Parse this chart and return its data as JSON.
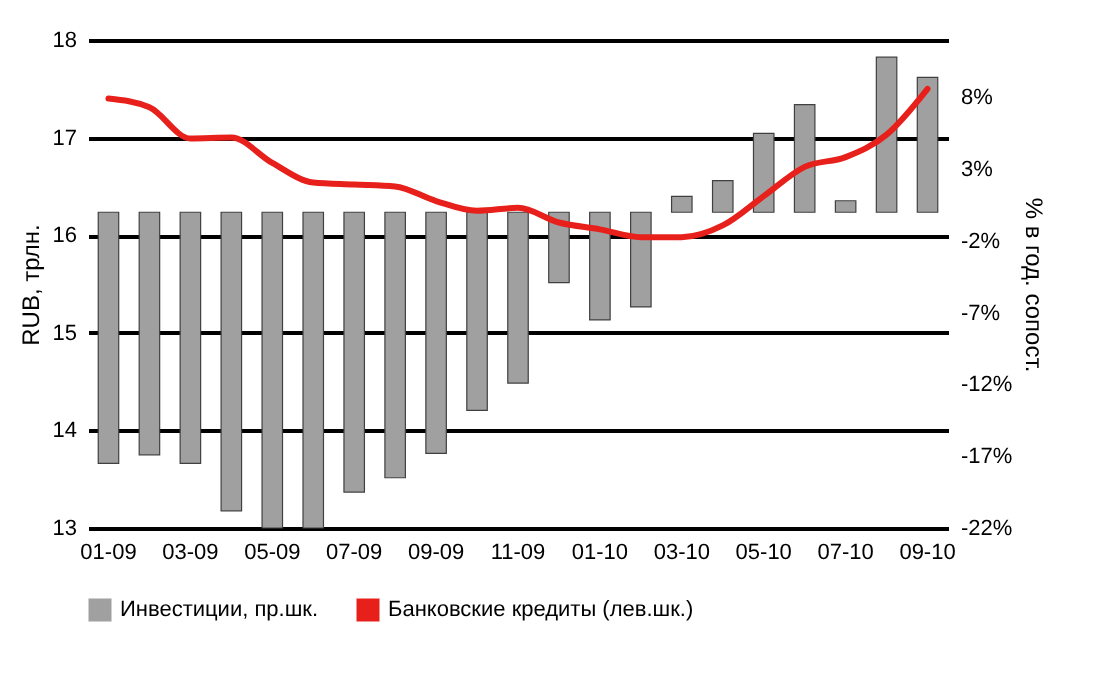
{
  "chart_data": {
    "type": "bar",
    "categories": [
      "01-09",
      null,
      "03-09",
      null,
      "05-09",
      null,
      "07-09",
      null,
      "09-09",
      null,
      "11-09",
      null,
      "01-10",
      null,
      "03-10",
      null,
      "05-10",
      null,
      "07-10",
      null,
      "09-10"
    ],
    "series": [
      {
        "name": "Инвестиции, пр.шк.",
        "axis": "y2",
        "color": "#a0a0a0",
        "values": [
          -17.5,
          -16.9,
          -17.5,
          -20.8,
          -22,
          -22,
          -19.5,
          -18.5,
          -16.8,
          -13.8,
          -11.9,
          -4.9,
          -7.5,
          -6.6,
          1.1,
          2.2,
          5.5,
          7.5,
          0.8,
          10.8,
          9.4
        ]
      },
      {
        "name": "Банковские кредиты (лев.шк.)",
        "type": "line",
        "color": "#e8201c",
        "values": [
          17.4,
          17.31,
          16.99,
          17.0,
          16.74,
          16.54,
          16.52,
          16.5,
          16.35,
          16.25,
          16.28,
          16.13,
          16.06,
          15.98,
          15.98,
          16.1,
          16.4,
          16.7,
          16.8,
          17.03,
          17.5
        ]
      }
    ],
    "ylabel": "RUB, трлн.",
    "y2label": "% в год. сопост.",
    "ylim": [
      13,
      18
    ],
    "yticks": [
      13,
      14,
      15,
      16,
      17,
      18
    ],
    "y2lim": [
      -22,
      12
    ],
    "y2ticks": [
      {
        "value": -22,
        "label": "-22%"
      },
      {
        "value": -17,
        "label": "-17%"
      },
      {
        "value": -12,
        "label": "-12%"
      },
      {
        "value": -7,
        "label": "-7%"
      },
      {
        "value": -2,
        "label": "-2%"
      },
      {
        "value": 3,
        "label": "3%"
      },
      {
        "value": 8,
        "label": "8%"
      }
    ],
    "grid": "y",
    "legend": "bottom"
  }
}
